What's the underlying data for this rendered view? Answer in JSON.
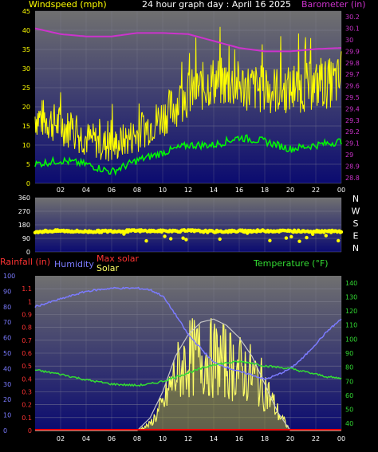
{
  "header": {
    "left_title": "Windspeed (mph)",
    "center_title": "24 hour graph day : April 16 2025",
    "right_title": "Barometer (in)"
  },
  "colors": {
    "bg": "#000000",
    "plot_top": "#6e6e6e",
    "plot_bottom": "#0a0a6e",
    "wind": "#ffff00",
    "wind_avg": "#00ff00",
    "barometer": "#cc33cc",
    "humidity": "#7b7bff",
    "temperature": "#33dd33",
    "solar": "#ffff66",
    "max_solar": "#c8c8c8",
    "rain": "#ff0000",
    "tick_text": "#ffffff"
  },
  "hour_labels": [
    "02",
    "04",
    "06",
    "08",
    "10",
    "12",
    "14",
    "16",
    "18",
    "20",
    "22",
    "00"
  ],
  "panel1": {
    "left_ticks": [
      "45",
      "40",
      "35",
      "30",
      "25",
      "20",
      "15",
      "10",
      "5",
      "0"
    ],
    "right_ticks": [
      "30.2",
      "30.1",
      "30",
      "29.9",
      "29.8",
      "29.7",
      "29.6",
      "29.5",
      "29.4",
      "29.3",
      "29.2",
      "29.1",
      "29",
      "28.9",
      "28.8"
    ]
  },
  "panel2": {
    "left_ticks": [
      "360",
      "270",
      "180",
      "90",
      "0"
    ],
    "compass": [
      "N",
      "W",
      "S",
      "E",
      "N"
    ]
  },
  "panel3": {
    "legend": {
      "rainfall": "Rainfall (in)",
      "humidity": "Humidity",
      "max_solar": "Max solar",
      "solar": "Solar",
      "temperature": "Temperature (°F)"
    },
    "humidity_ticks": [
      "100",
      "90",
      "80",
      "70",
      "60",
      "50",
      "40",
      "30",
      "20",
      "10",
      "0"
    ],
    "rain_ticks": [
      "1.1",
      "1",
      "0.9",
      "0.8",
      "0.7",
      "0.6",
      "0.5",
      "0.4",
      "0.3",
      "0.2",
      "0.1",
      "0"
    ],
    "temp_ticks": [
      "140",
      "130",
      "120",
      "110",
      "100",
      "90",
      "80",
      "70",
      "60",
      "50",
      "40"
    ]
  },
  "chart_data": [
    {
      "type": "line",
      "title": "24 hour graph day : April 16 2025",
      "xlabel": "",
      "ylabel": "Windspeed (mph)",
      "y2label": "Barometer (in)",
      "ylim": [
        0,
        45
      ],
      "y2lim": [
        28.75,
        30.25
      ],
      "x": [
        0,
        2,
        4,
        6,
        8,
        10,
        12,
        14,
        16,
        18,
        20,
        22,
        24
      ],
      "series": [
        {
          "name": "Windspeed (mph)",
          "axis": "y",
          "values": [
            17,
            15,
            12,
            10,
            13,
            17,
            22,
            25,
            24,
            23,
            23,
            24,
            25
          ]
        },
        {
          "name": "",
          "axis": "y",
          "values": [
            5,
            6,
            5,
            3,
            6,
            8,
            10,
            10,
            12,
            11,
            9,
            10,
            11
          ]
        },
        {
          "name": "Barometer (in)",
          "axis": "y2",
          "values": [
            30.1,
            30.05,
            30.03,
            30.03,
            30.06,
            30.06,
            30.05,
            29.99,
            29.93,
            29.9,
            29.9,
            29.92,
            29.93
          ]
        }
      ]
    },
    {
      "type": "scatter",
      "ylabel": "Wind direction",
      "ylim": [
        0,
        360
      ],
      "x": [
        0,
        2,
        4,
        6,
        8,
        10,
        12,
        14,
        16,
        18,
        20,
        22,
        24
      ],
      "series": [
        {
          "name": "",
          "values": [
            135,
            140,
            135,
            138,
            140,
            138,
            140,
            135,
            138,
            140,
            138,
            138,
            135
          ]
        }
      ]
    },
    {
      "type": "line",
      "ylabel": "Humidity",
      "y2label": "Temperature (°F)",
      "ylim": [
        0,
        100
      ],
      "y2lim": [
        35,
        145
      ],
      "x": [
        0,
        2,
        4,
        6,
        8,
        9,
        10,
        11,
        12,
        13,
        14,
        15,
        16,
        17,
        18,
        19,
        20,
        21,
        22,
        23,
        24
      ],
      "series": [
        {
          "name": "Humidity",
          "axis": "y",
          "values": [
            80,
            85,
            90,
            92,
            92,
            91,
            87,
            75,
            62,
            53,
            44,
            41,
            38,
            36,
            33,
            36,
            40,
            47,
            56,
            65,
            72
          ]
        },
        {
          "name": "Temperature (°F)",
          "axis": "y2",
          "values": [
            78,
            75,
            71,
            68,
            67,
            68,
            70,
            73,
            76,
            79,
            82,
            83,
            84,
            83,
            81,
            80,
            79,
            77,
            75,
            73,
            72
          ]
        },
        {
          "name": "Solar",
          "axis": "y",
          "values": [
            0,
            0,
            0,
            0,
            0,
            5,
            20,
            45,
            58,
            60,
            58,
            55,
            50,
            45,
            35,
            15,
            0,
            0,
            0,
            0,
            0
          ]
        },
        {
          "name": "Max solar",
          "axis": "y",
          "values": [
            0,
            0,
            0,
            0,
            0,
            8,
            25,
            48,
            62,
            70,
            72,
            68,
            60,
            48,
            30,
            12,
            0,
            0,
            0,
            0,
            0
          ]
        },
        {
          "name": "Rainfall (in)",
          "axis": "y",
          "values": [
            0,
            0,
            0,
            0,
            0,
            0,
            0,
            0,
            0,
            0,
            0,
            0,
            0,
            0,
            0,
            0,
            0,
            0,
            0,
            0,
            0
          ]
        }
      ]
    }
  ]
}
